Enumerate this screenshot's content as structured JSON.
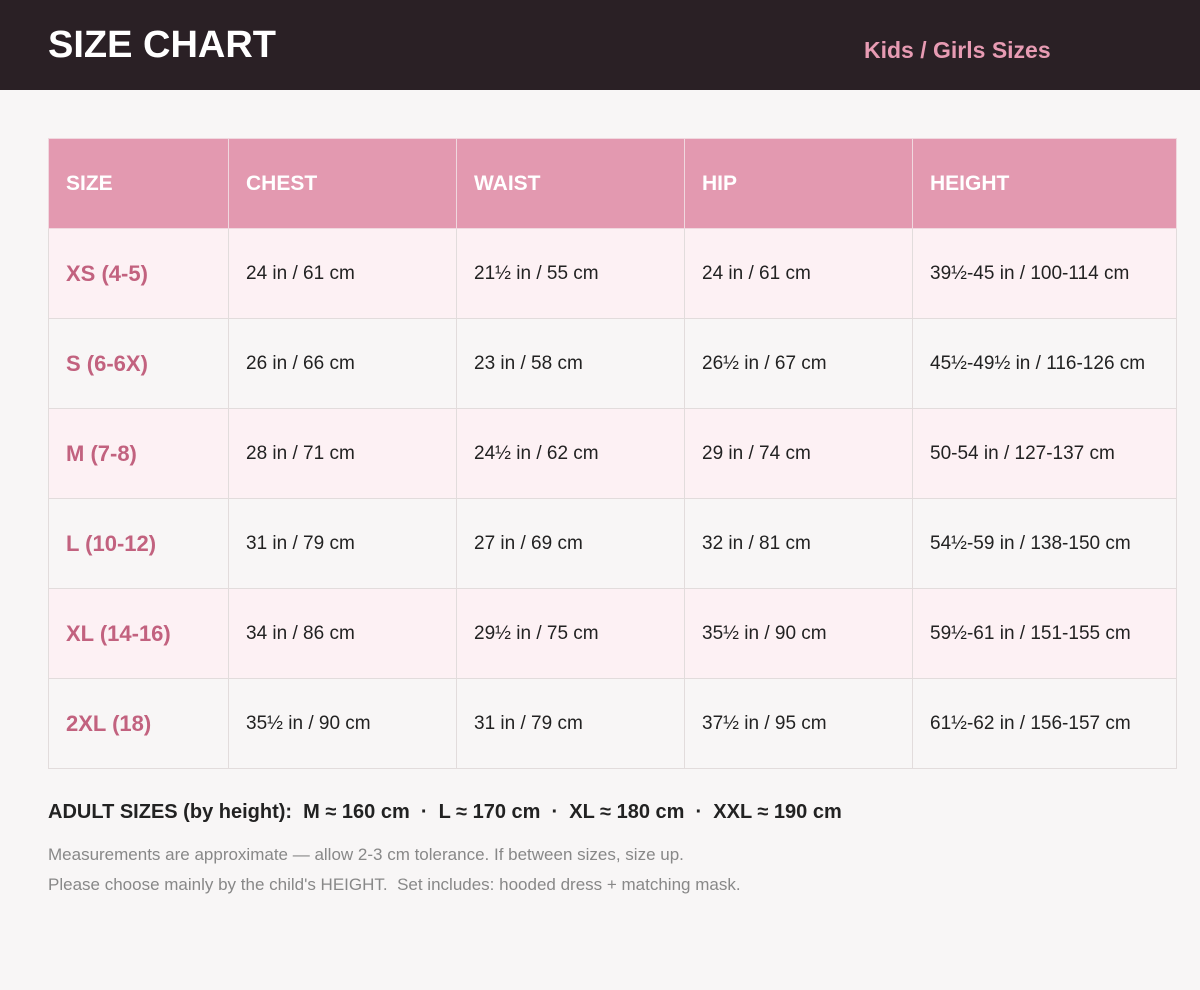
{
  "header": {
    "title": "SIZE CHART",
    "subtitle": "Kids / Girls Sizes"
  },
  "table": {
    "columns": [
      "SIZE",
      "CHEST",
      "WAIST",
      "HIP",
      "HEIGHT"
    ],
    "rows": [
      [
        "XS (4-5)",
        "24 in / 61 cm",
        "21½ in / 55 cm",
        "24 in / 61 cm",
        "39½-45 in / 100-114 cm"
      ],
      [
        "S (6-6X)",
        "26 in / 66 cm",
        "23 in / 58 cm",
        "26½ in / 67 cm",
        "45½-49½ in / 116-126 cm"
      ],
      [
        "M (7-8)",
        "28 in / 71 cm",
        "24½ in / 62 cm",
        "29 in / 74 cm",
        "50-54 in / 127-137 cm"
      ],
      [
        "L (10-12)",
        "31 in / 79 cm",
        "27 in / 69 cm",
        "32 in / 81 cm",
        "54½-59 in / 138-150 cm"
      ],
      [
        "XL (14-16)",
        "34 in / 86 cm",
        "29½ in / 75 cm",
        "35½ in / 90 cm",
        "59½-61 in / 151-155 cm"
      ],
      [
        "2XL (18)",
        "35½ in / 90 cm",
        "31 in / 79 cm",
        "37½ in / 95 cm",
        "61½-62 in / 156-157 cm"
      ]
    ]
  },
  "adult": "ADULT SIZES (by height):  M ≈ 160 cm  ·  L ≈ 170 cm  ·  XL ≈ 180 cm  ·  XXL ≈ 190 cm",
  "notes": [
    "Measurements are approximate — allow 2-3 cm tolerance. If between sizes, size up.",
    "Please choose mainly by the child's HEIGHT.  Set includes: hooded dress + matching mask."
  ]
}
